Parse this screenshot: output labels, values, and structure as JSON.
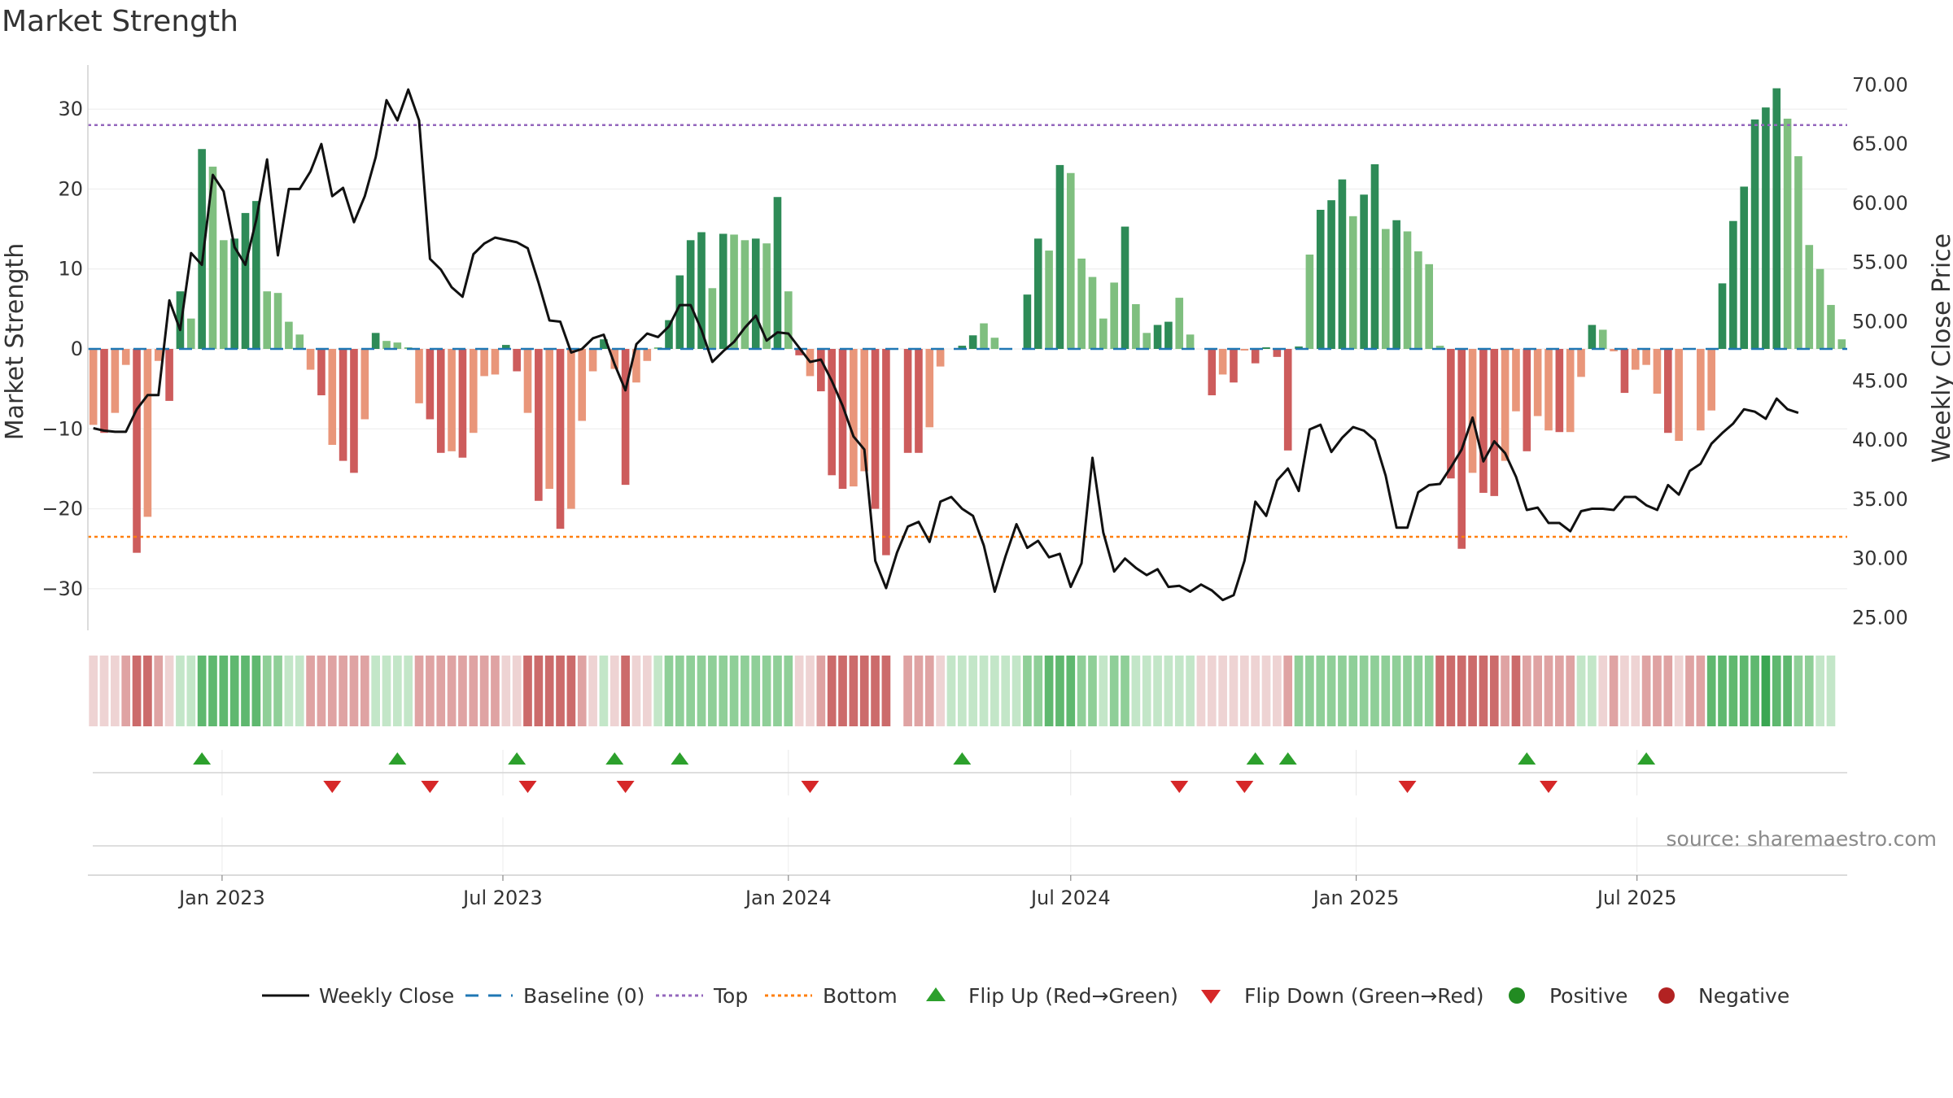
{
  "title": "Market Strength",
  "source": "source: sharemaestro.com",
  "chart_data": {
    "type": "bar+line",
    "title": "Market Strength",
    "ylabel_left": "Market Strength",
    "ylabel_right": "Weekly Close Price",
    "ylim_left": [
      -35.5,
      35.5
    ],
    "ylim_right": [
      23.5,
      72
    ],
    "yticks_left": [
      "30",
      "20",
      "10",
      "0",
      "−10",
      "−20",
      "−30"
    ],
    "yticks_right": [
      "70.00",
      "65.00",
      "60.00",
      "55.00",
      "50.00",
      "45.00",
      "40.00",
      "35.00",
      "30.00",
      "25.00"
    ],
    "x_start": "2022-10-10",
    "x_end": "2025-09-22",
    "xtick_labels": [
      "Jan 2023",
      "Jul 2023",
      "Jan 2024",
      "Jul 2024",
      "Jan 2025",
      "Jul 2025"
    ],
    "reference_lines": {
      "top": 28,
      "bottom": -23.5,
      "baseline": 0
    },
    "strength": [
      -9.5,
      -10.5,
      -8,
      -2,
      -25.5,
      -21,
      -1.5,
      -6.5,
      7.2,
      3.8,
      25,
      22.8,
      13.6,
      13.8,
      17,
      18.5,
      7.2,
      7,
      3.4,
      1.8,
      -2.6,
      -5.8,
      -12,
      -14,
      -15.5,
      -8.8,
      2,
      1,
      0.8,
      0.2,
      -6.8,
      -8.8,
      -13,
      -12.8,
      -13.6,
      -10.5,
      -3.4,
      -3.2,
      0.5,
      -2.8,
      -8,
      -19,
      -17.5,
      -22.5,
      -20,
      -9,
      -2.8,
      1.2,
      -2.5,
      -17,
      -4.2,
      -1.5,
      0.2,
      3.6,
      9.2,
      13.6,
      14.6,
      7.6,
      14.4,
      14.3,
      13.6,
      13.8,
      13.2,
      19,
      7.2,
      -0.8,
      -3.4,
      -5.3,
      -15.8,
      -17.5,
      -17.2,
      -15.3,
      -20,
      -25.8,
      0,
      -13,
      -13,
      -9.8,
      -2.2,
      0,
      0.4,
      1.7,
      3.2,
      1.4,
      0,
      0,
      6.8,
      13.8,
      12.3,
      23,
      22,
      11.3,
      9,
      3.8,
      8.3,
      15.3,
      5.6,
      2,
      3,
      3.4,
      6.4,
      1.8,
      0,
      -5.8,
      -3.2,
      -4.2,
      -0.2,
      -1.8,
      0.2,
      -1,
      -12.7,
      0.3,
      11.8,
      17.4,
      18.6,
      21.2,
      16.6,
      19.3,
      23.1,
      15,
      16.1,
      14.7,
      12.2,
      10.6,
      0.4,
      -16.2,
      -25,
      -15.5,
      -18,
      -18.4,
      -14,
      -7.8,
      -12.8,
      -8.4,
      -10.2,
      -10.4,
      -10.4,
      -3.5,
      3,
      2.4,
      -0.3,
      -5.5,
      -2.6,
      -2,
      -5.6,
      -10.5,
      -11.5,
      0,
      -10.2,
      -7.7,
      8.2,
      16,
      20.3,
      28.7,
      30.2,
      32.6,
      28.8,
      24.1,
      13,
      10,
      5.5,
      1.2
    ],
    "weekly_close": [
      41,
      40.8,
      40.7,
      40.7,
      42.6,
      43.8,
      43.8,
      51.8,
      49.3,
      55.8,
      54.8,
      62.4,
      61,
      56.3,
      54.8,
      58.6,
      63.7,
      55.6,
      61.2,
      61.2,
      62.7,
      65,
      60.6,
      61.3,
      58.4,
      60.6,
      63.9,
      68.7,
      67,
      69.6,
      67,
      55.3,
      54.4,
      52.9,
      52.1,
      55.7,
      56.6,
      57.1,
      56.9,
      56.7,
      56.2,
      53.3,
      50.1,
      50,
      47.4,
      47.7,
      48.6,
      48.9,
      46.4,
      44.2,
      48.1,
      49,
      48.7,
      49.6,
      51.4,
      51.4,
      49.3,
      46.6,
      47.5,
      48.3,
      49.5,
      50.5,
      48.4,
      49.1,
      49,
      47.8,
      46.6,
      46.8,
      45,
      42.9,
      40.3,
      39.2,
      29.8,
      27.5,
      30.5,
      32.7,
      33.1,
      31.4,
      34.8,
      35.2,
      34.2,
      33.6,
      31.1,
      27.2,
      30.2,
      32.9,
      30.9,
      31.5,
      30.1,
      30.4,
      27.6,
      29.6,
      38.5,
      32.2,
      28.9,
      30,
      29.2,
      28.6,
      29.1,
      27.6,
      27.7,
      27.2,
      27.8,
      27.3,
      26.5,
      26.9,
      29.8,
      34.8,
      33.6,
      36.6,
      37.6,
      35.7,
      40.9,
      41.3,
      39,
      40.2,
      41.1,
      40.8,
      40,
      37,
      32.6,
      32.6,
      35.6,
      36.2,
      36.3,
      37.7,
      39.2,
      41.9,
      38.2,
      39.9,
      38.9,
      36.9,
      34.1,
      34.3,
      33,
      33,
      32.3,
      34,
      34.2,
      34.2,
      34.1,
      35.2,
      35.2,
      34.5,
      34.1,
      36.2,
      35.4,
      37.4,
      38,
      39.7,
      40.6,
      41.4,
      42.6,
      42.4,
      41.8,
      43.5,
      42.6,
      42.3
    ],
    "heat_strip_color_index": [
      -1,
      -1,
      -1,
      -2,
      -3,
      -3,
      -2,
      -1,
      1,
      1,
      3,
      3,
      3,
      3,
      3,
      3,
      2,
      2,
      1,
      1,
      -2,
      -2,
      -2,
      -2,
      -2,
      -2,
      1,
      1,
      1,
      1,
      -2,
      -2,
      -2,
      -2,
      -2,
      -2,
      -2,
      -2,
      -1,
      -1,
      -3,
      -3,
      -3,
      -3,
      -3,
      -2,
      -1,
      1,
      -1,
      -3,
      -1,
      -1,
      1,
      2,
      2,
      2,
      2,
      2,
      2,
      2,
      2,
      2,
      2,
      2,
      2,
      -1,
      -1,
      -2,
      -3,
      -3,
      -3,
      -3,
      -3,
      -3,
      0,
      -2,
      -2,
      -2,
      -1,
      1,
      1,
      1,
      1,
      1,
      1,
      1,
      2,
      2,
      3,
      3,
      3,
      2,
      2,
      1,
      2,
      2,
      1,
      1,
      1,
      1,
      1,
      1,
      -1,
      -1,
      -1,
      -1,
      -1,
      -1,
      -1,
      -1,
      -2,
      2,
      2,
      2,
      2,
      2,
      2,
      2,
      2,
      2,
      2,
      2,
      2,
      2,
      -3,
      -3,
      -3,
      -3,
      -3,
      -3,
      -2,
      -3,
      -2,
      -2,
      -2,
      -2,
      -2,
      1,
      1,
      -1,
      -2,
      -1,
      -1,
      -2,
      -2,
      -2,
      -1,
      -2,
      -2,
      3,
      3,
      3,
      3,
      3,
      4,
      3,
      3,
      2,
      2,
      1,
      1
    ],
    "flip_up_weeks": [
      10,
      28,
      39,
      48,
      54,
      80,
      107,
      110,
      132,
      143
    ],
    "flip_down_weeks": [
      22,
      31,
      40,
      49,
      66,
      100,
      106,
      121,
      134
    ],
    "legend": [
      "Weekly Close",
      "Baseline (0)",
      "Top",
      "Bottom",
      "Flip Up (Red→Green)",
      "Flip Down (Green→Red)",
      "Positive",
      "Negative"
    ],
    "colors": {
      "bar_pos_strong": "#2e8b57",
      "bar_pos_weak": "#7fbf7f",
      "bar_neg_strong": "#cd5c5c",
      "bar_neg_weak": "#e9967a",
      "line": "#111111",
      "baseline": "#1f77b4",
      "top": "#9467bd",
      "bottom": "#ff7f0e",
      "flip_up": "#2ca02c",
      "flip_down": "#d62728",
      "positive": "#228b22",
      "negative": "#b22222"
    }
  }
}
